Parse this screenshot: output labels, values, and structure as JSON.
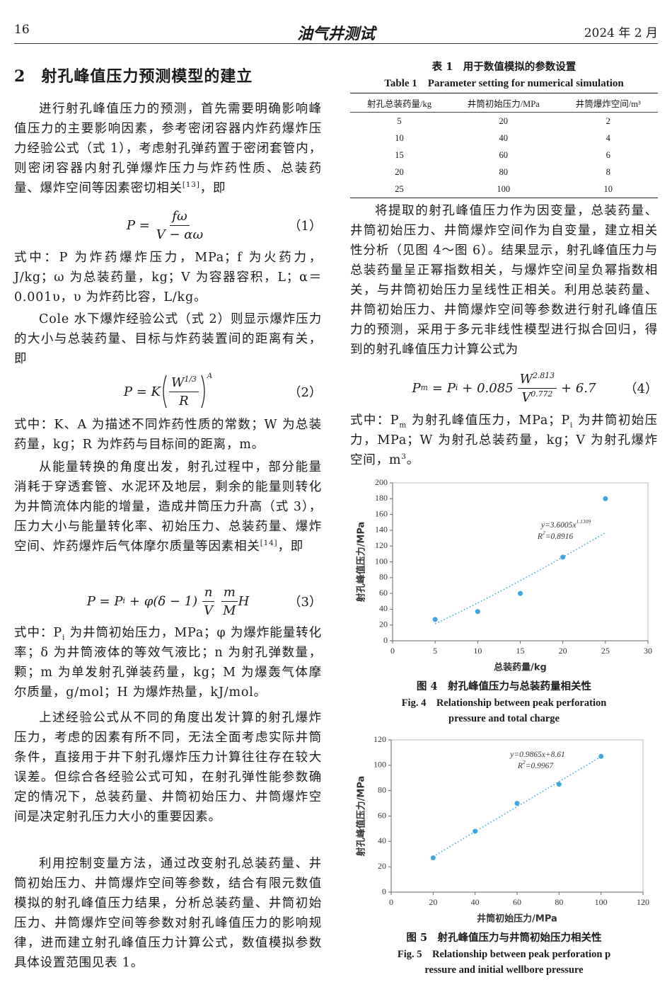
{
  "header": {
    "page": "16",
    "journal": "油气井测试",
    "date": "2024 年 2 月"
  },
  "section": {
    "number": "2",
    "title": "射孔峰值压力预测模型的建立"
  },
  "paragraphs": [
    [
      "进行射孔峰值压力的预测，首先需要明确影响峰值压力的主要影响因素，参考密闭容器内炸药爆炸压力经验公式（式 1），考虑射孔弹药置于密闭套管内，则密闭容器内射孔弹爆炸压力与炸药性质、总装药量、爆炸空间等因素密切相关",
      {
        "sup": "[13]"
      },
      "，即"
    ],
    [
      "式中：P 为炸药爆炸压力，MPa；f 为火药力，J/kg；ω 为总装药量，kg；V 为容器容积，L；α＝0.001υ，υ 为炸药比容，L/kg。"
    ],
    [
      "Cole 水下爆炸经验公式（式 2）则显示爆炸压力的大小与总装药量、目标与炸药装置间的距离有关，即"
    ],
    [
      "式中：K、A 为描述不同炸药性质的常数；W 为总装药量，kg；R 为炸药与目标间的距离，m。"
    ],
    [
      "从能量转换的角度出发，射孔过程中，部分能量消耗于穿透套管、水泥环及地层，剩余的能量则转化为井筒流体内能的增量，造成井筒压力升高（式 3），压力大小与能量转化率、初始压力、总装药量、爆炸空间、炸药爆炸后气体摩尔质量等因素相关",
      {
        "sup": "[14]"
      },
      "，即"
    ],
    [
      "式中：P",
      {
        "sub": "i"
      },
      " 为井筒初始压力，MPa；φ 为爆炸能量转化率；δ 为井筒液体的等效气液比；n 为射孔弹数量，颗；m 为单发射孔弹装药量，kg；M 为爆轰气体摩尔质量，g/mol；H 为爆炸热量，kJ/mol。"
    ],
    [
      "上述经验公式从不同的角度出发计算的射孔爆炸压力，考虑的因素有所不同，无法全面考虑实际井筒条件，直接用于井下射孔爆炸压力计算往往存在较大误差。但综合各经验公式可知，在射孔弹性能参数确定的情况下，总装药量、井筒初始压力、井筒爆炸空间是决定射孔压力大小的重要因素。"
    ],
    [
      "利用控制变量方法，通过改变射孔总装药量、井筒初始压力、井筒爆炸空间等参数，结合有限元数值模拟的射孔峰值压力结果，分析总装药量、井筒初始压力、井筒爆炸空间等参数对射孔峰值压力的影响规律，进而建立射孔峰值压力计算公式，数值模拟参数具体设置范围见表 1。"
    ],
    [
      "将提取的射孔峰值压力作为因变量，总装药量、井筒初始压力、井筒爆炸空间作为自变量，建立相关性分析（见图 4～图 6）。结果显示，射孔峰值压力与总装药量呈正幂指数相关，与爆炸空间呈负幂指数相关，与井筒初始压力呈线性正相关。利用总装药量、井筒初始压力、井筒爆炸空间等参数进行射孔峰值压力的预测，采用于多元非线性模型进行拟合回归，得到的射孔峰值压力计算公式为"
    ],
    [
      "式中：P",
      {
        "sub": "m"
      },
      " 为射孔峰值压力，MPa；P",
      {
        "sub": "i"
      },
      " 为井筒初始压力，MPa；W 为射孔总装药量，kg；V 为射孔爆炸空间，m",
      {
        "sup": "3"
      },
      "。"
    ]
  ],
  "eq1": {
    "lhs": "P =",
    "numerator": "fω",
    "denominator": "V − αω",
    "number": "（1）"
  },
  "eq2": {
    "lhs": "P = K",
    "numerator": "W",
    "numerator_sup": "1/3",
    "denominator": "R",
    "outer_sup": "A",
    "number": "（2）"
  },
  "eq3": {
    "lhs": "P = P",
    "lhs_sub": "i",
    "middle": "+ φ(δ − 1)",
    "frac1_num": "n",
    "frac1_den": "V",
    "frac2_num": "m",
    "frac2_den": "M",
    "tail": "H",
    "number": "（3）"
  },
  "eq4": {
    "lhs": "P",
    "lhs_sub": "m",
    "eq": "= P",
    "eq_sub": "i",
    "coef": "+ 0.085",
    "num": "W",
    "num_sup": "2.813",
    "den": "V",
    "den_sup": "0.772",
    "tail": "+ 6.7",
    "number": "（4）"
  },
  "table": {
    "caption_cn": "表 1　用于数值模拟的参数设置",
    "caption_en": "Table 1　Parameter setting for numerical simulation",
    "headers": [
      "射孔总装药量/kg",
      "井筒初始压力/MPa",
      "井筒爆炸空间/m³"
    ],
    "rows": [
      [
        5,
        20,
        2
      ],
      [
        10,
        40,
        4
      ],
      [
        15,
        60,
        6
      ],
      [
        20,
        80,
        8
      ],
      [
        25,
        100,
        10
      ]
    ]
  },
  "chart_data": [
    {
      "type": "scatter",
      "trendline": "power",
      "color": "#3ea6df",
      "x": [
        5,
        10,
        15,
        20,
        25
      ],
      "values": [
        27,
        37,
        60,
        106,
        180
      ],
      "xlim": [
        0,
        30
      ],
      "xticks": [
        0,
        5,
        10,
        15,
        20,
        25,
        30
      ],
      "ylim": [
        0,
        200
      ],
      "yticks": [
        0,
        20,
        40,
        60,
        80,
        100,
        120,
        140,
        160,
        180,
        200
      ],
      "xlabel": "总装药量/kg",
      "ylabel": "射孔峰值压力/MPa",
      "annotation": [
        {
          "text": "y=3.6005x",
          "sup": "1.1309"
        },
        {
          "text": "R",
          "sup": "2",
          "tail": "=0.8916"
        }
      ],
      "caption_cn": "图 4　射孔峰值压力与总装药量相关性",
      "caption_en": [
        "Fig. 4　Relationship between peak perforation",
        "pressure and total charge"
      ]
    },
    {
      "type": "scatter",
      "trendline": "linear",
      "color": "#3ea6df",
      "x": [
        20,
        40,
        60,
        80,
        100
      ],
      "values": [
        27,
        48,
        70,
        85,
        107
      ],
      "xlim": [
        0,
        120
      ],
      "xticks": [
        0,
        20,
        40,
        60,
        80,
        100,
        120
      ],
      "ylim": [
        0,
        120
      ],
      "yticks": [
        0,
        20,
        40,
        60,
        80,
        100,
        120
      ],
      "xlabel": "井筒初始压力/MPa",
      "ylabel": "射孔峰值压力/MPa",
      "annotation": [
        {
          "text": "y=0.9865x+8.61"
        },
        {
          "text": "R",
          "sup": "2",
          "tail": "=0.9967"
        }
      ],
      "caption_cn": "图 5　射孔峰值压力与井筒初始压力相关性",
      "caption_en": [
        "Fig. 5　Relationship between peak perforation p",
        "ressure and initial wellbore pressure"
      ]
    }
  ]
}
